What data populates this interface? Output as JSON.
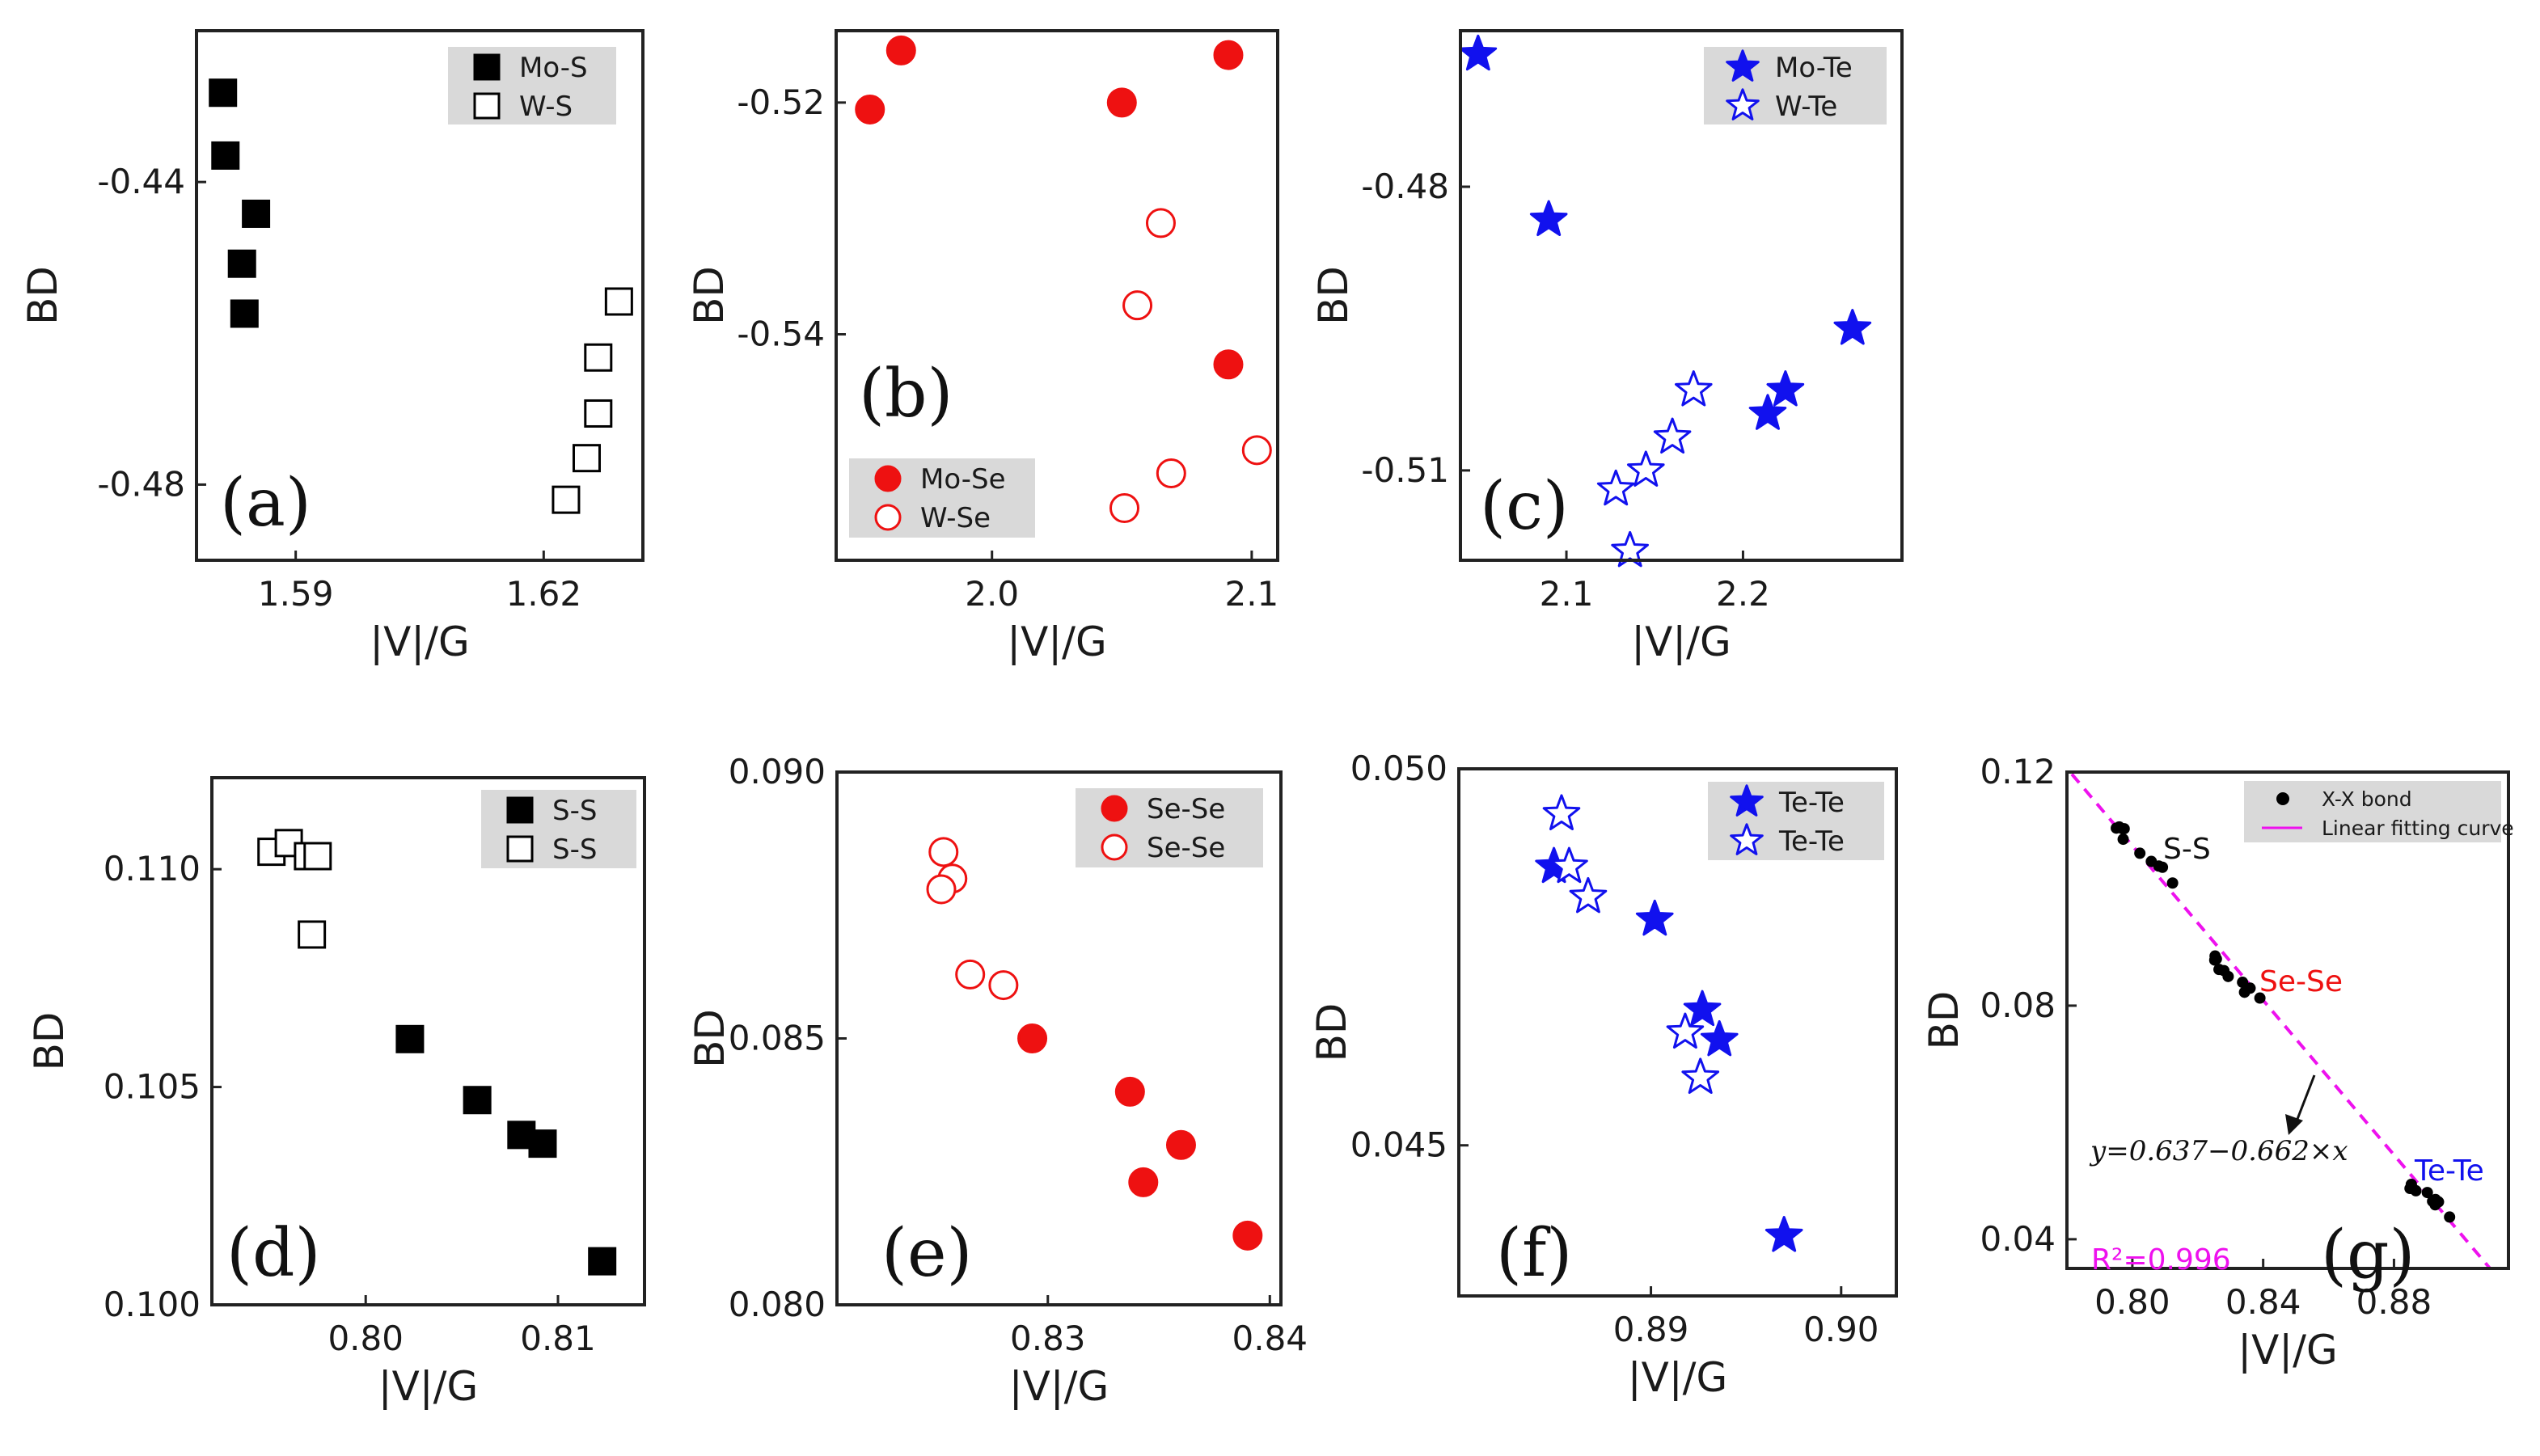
{
  "chart_data": [
    {
      "panel": "(a)",
      "type": "scatter",
      "xlabel": "|V|/G",
      "ylabel": "BD",
      "xlim": [
        1.578,
        1.632
      ],
      "ylim": [
        -0.49,
        -0.42
      ],
      "xticks": [
        1.59,
        1.62
      ],
      "xtick_labels": [
        "1.59",
        "1.62"
      ],
      "yticks": [
        -0.44,
        -0.48
      ],
      "ytick_labels": [
        "-0.44",
        "-0.48"
      ],
      "legend_position": "top-right",
      "series": [
        {
          "name": "Mo-S",
          "marker": "square",
          "filled": true,
          "color": "#000000",
          "x": [
            1.5812,
            1.5815,
            1.5852,
            1.5835,
            1.5838
          ],
          "y": [
            -0.4282,
            -0.4365,
            -0.4442,
            -0.4508,
            -0.4574
          ]
        },
        {
          "name": "W-S",
          "marker": "square",
          "filled": false,
          "color": "#000000",
          "x": [
            1.6291,
            1.6266,
            1.6266,
            1.6252,
            1.6227
          ],
          "y": [
            -0.4558,
            -0.4632,
            -0.4706,
            -0.4765,
            -0.482
          ]
        }
      ]
    },
    {
      "panel": "(b)",
      "type": "scatter",
      "xlabel": "|V|/G",
      "ylabel": "BD",
      "xlim": [
        1.94,
        2.11
      ],
      "ylim": [
        -0.5595,
        -0.5138
      ],
      "xticks": [
        2.0,
        2.1
      ],
      "xtick_labels": [
        "2.0",
        "2.1"
      ],
      "yticks": [
        -0.52,
        -0.54
      ],
      "ytick_labels": [
        "-0.52",
        "-0.54"
      ],
      "legend_position": "bottom-left",
      "series": [
        {
          "name": "Mo-Se",
          "marker": "circle",
          "filled": true,
          "color": "#ee1111",
          "x": [
            1.953,
            1.965,
            2.05,
            2.091,
            2.091
          ],
          "y": [
            -0.5206,
            -0.5155,
            -0.52,
            -0.5159,
            -0.5426
          ]
        },
        {
          "name": "W-Se",
          "marker": "circle",
          "filled": false,
          "color": "#ee1111",
          "x": [
            2.065,
            2.056,
            2.069,
            2.102,
            2.051
          ],
          "y": [
            -0.5304,
            -0.5375,
            -0.552,
            -0.55,
            -0.555
          ]
        }
      ]
    },
    {
      "panel": "(c)",
      "type": "scatter",
      "xlabel": "|V|/G",
      "ylabel": "BD",
      "xlim": [
        2.04,
        2.29
      ],
      "ylim": [
        -0.5195,
        -0.4635
      ],
      "xticks": [
        2.1,
        2.2
      ],
      "xtick_labels": [
        "2.1",
        "2.2"
      ],
      "yticks": [
        -0.48,
        -0.51
      ],
      "ytick_labels": [
        "-0.48",
        "-0.51"
      ],
      "legend_position": "top-right",
      "series": [
        {
          "name": "Mo-Te",
          "marker": "star",
          "filled": true,
          "color": "#1111ee",
          "x": [
            2.05,
            2.09,
            2.262,
            2.224,
            2.214
          ],
          "y": [
            -0.466,
            -0.4835,
            -0.495,
            -0.5015,
            -0.504
          ]
        },
        {
          "name": "W-Te",
          "marker": "star",
          "filled": false,
          "color": "#1111ee",
          "x": [
            2.172,
            2.16,
            2.145,
            2.128,
            2.136
          ],
          "y": [
            -0.5015,
            -0.5065,
            -0.51,
            -0.512,
            -0.5185
          ]
        }
      ]
    },
    {
      "panel": "(d)",
      "type": "scatter",
      "xlabel": "|V|/G",
      "ylabel": "BD",
      "xlim": [
        0.792,
        0.8145
      ],
      "ylim": [
        0.1,
        0.1121
      ],
      "xticks": [
        0.8,
        0.81
      ],
      "xtick_labels": [
        "0.80",
        "0.81"
      ],
      "yticks": [
        0.1,
        0.105,
        0.11
      ],
      "ytick_labels": [
        "0.100",
        "0.105",
        "0.110"
      ],
      "legend_position": "top-right",
      "series": [
        {
          "name": "S-S",
          "marker": "square",
          "filled": true,
          "color": "#000000",
          "x": [
            0.8023,
            0.8058,
            0.8081,
            0.8092,
            0.8123
          ],
          "y": [
            0.1061,
            0.1047,
            0.1039,
            0.1037,
            0.101
          ]
        },
        {
          "name": "S-S",
          "marker": "square",
          "filled": false,
          "color": "#000000",
          "x": [
            0.7951,
            0.796,
            0.797,
            0.7975,
            0.7972
          ],
          "y": [
            0.1104,
            0.1106,
            0.1103,
            0.1103,
            0.1085
          ]
        }
      ]
    },
    {
      "panel": "(e)",
      "type": "scatter",
      "xlabel": "|V|/G",
      "ylabel": "BD",
      "xlim": [
        0.8205,
        0.8405
      ],
      "ylim": [
        0.08,
        0.09
      ],
      "xticks": [
        0.83,
        0.84
      ],
      "xtick_labels": [
        "0.83",
        "0.84"
      ],
      "yticks": [
        0.08,
        0.085,
        0.09
      ],
      "ytick_labels": [
        "0.080",
        "0.085",
        "0.090"
      ],
      "legend_position": "top-right",
      "series": [
        {
          "name": "Se-Se",
          "marker": "circle",
          "filled": true,
          "color": "#ee1111",
          "x": [
            0.8293,
            0.8337,
            0.836,
            0.8343,
            0.839
          ],
          "y": [
            0.085,
            0.084,
            0.083,
            0.0823,
            0.0813
          ]
        },
        {
          "name": "Se-Se",
          "marker": "circle",
          "filled": false,
          "color": "#ee1111",
          "x": [
            0.8253,
            0.8257,
            0.8252,
            0.8265,
            0.828
          ],
          "y": [
            0.0885,
            0.088,
            0.0878,
            0.0862,
            0.086
          ]
        }
      ]
    },
    {
      "panel": "(f)",
      "type": "scatter",
      "xlabel": "|V|/G",
      "ylabel": "BD",
      "xlim": [
        0.8799,
        0.9029
      ],
      "ylim": [
        0.043,
        0.05
      ],
      "xticks": [
        0.89,
        0.9
      ],
      "xtick_labels": [
        "0.89",
        "0.90"
      ],
      "yticks": [
        0.045,
        0.05
      ],
      "ytick_labels": [
        "0.045",
        "0.050"
      ],
      "legend_position": "top-right",
      "series": [
        {
          "name": "Te-Te",
          "marker": "star",
          "filled": true,
          "color": "#1111ee",
          "x": [
            0.8849,
            0.8902,
            0.8927,
            0.8936,
            0.897
          ],
          "y": [
            0.0487,
            0.048,
            0.0468,
            0.0464,
            0.0438
          ]
        },
        {
          "name": "Te-Te",
          "marker": "star",
          "filled": false,
          "color": "#1111ee",
          "x": [
            0.8853,
            0.8857,
            0.8867,
            0.8918,
            0.8926
          ],
          "y": [
            0.0494,
            0.0487,
            0.0483,
            0.0465,
            0.0459
          ]
        }
      ]
    },
    {
      "panel": "(g)",
      "type": "scatter",
      "xlabel": "|V|/G",
      "ylabel": "BD",
      "xlim": [
        0.78,
        0.915
      ],
      "ylim": [
        0.035,
        0.12
      ],
      "xticks": [
        0.8,
        0.84,
        0.88
      ],
      "xtick_labels": [
        "0.80",
        "0.84",
        "0.88"
      ],
      "yticks": [
        0.04,
        0.08,
        0.12
      ],
      "ytick_labels": [
        "0.04",
        "0.08",
        "0.12"
      ],
      "legend_position": "top-right",
      "series": [
        {
          "name": "X-X bond",
          "marker": "dot",
          "filled": true,
          "color": "#000000",
          "x": [
            0.7951,
            0.796,
            0.797,
            0.7975,
            0.7972,
            0.8023,
            0.8058,
            0.8081,
            0.8092,
            0.8123,
            0.8253,
            0.8257,
            0.8252,
            0.8265,
            0.828,
            0.8293,
            0.8337,
            0.836,
            0.8343,
            0.839,
            0.8849,
            0.8902,
            0.8927,
            0.8936,
            0.897,
            0.8853,
            0.8857,
            0.8867,
            0.8918,
            0.8926
          ],
          "y": [
            0.1104,
            0.1106,
            0.1103,
            0.1103,
            0.1085,
            0.1061,
            0.1047,
            0.1039,
            0.1037,
            0.101,
            0.0885,
            0.088,
            0.0878,
            0.0862,
            0.086,
            0.085,
            0.084,
            0.083,
            0.0823,
            0.0813,
            0.0487,
            0.048,
            0.0468,
            0.0464,
            0.0438,
            0.0494,
            0.0487,
            0.0483,
            0.0465,
            0.0459
          ]
        },
        {
          "name": "Linear fitting curve",
          "type": "line",
          "color": "#ee11ee",
          "intercept": 0.637,
          "slope": -0.662
        }
      ],
      "annotations": {
        "ss": "S-S",
        "sese": "Se-Se",
        "tete": "Te-Te",
        "equation": "y=0.637−0.662×x",
        "r2": "R²=0.996"
      }
    }
  ]
}
